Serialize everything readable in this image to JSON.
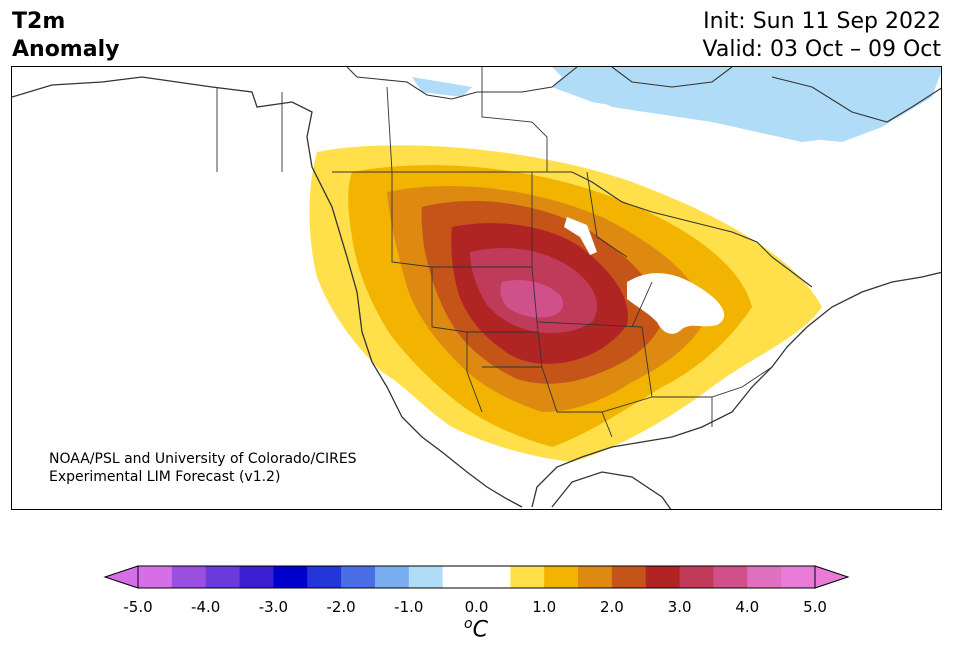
{
  "header": {
    "title_line1": "T2m",
    "title_line2": "Anomaly",
    "init": "Init: Sun 11 Sep 2022",
    "valid": "Valid: 03 Oct – 09 Oct"
  },
  "credit": {
    "line1": "NOAA/PSL and University of Colorado/CIRES",
    "line2": "Experimental LIM Forecast (v1.2)"
  },
  "colorbar": {
    "unit_main": "C",
    "unit_sup": "o",
    "ticks": [
      "-5.0",
      "-4.0",
      "-3.0",
      "-2.0",
      "-1.0",
      "0.0",
      "1.0",
      "2.0",
      "3.0",
      "4.0",
      "5.0"
    ],
    "colors": [
      "#d66ee8",
      "#9a4fe0",
      "#6a3adc",
      "#3a20d0",
      "#0000cc",
      "#2236d9",
      "#4a6ee6",
      "#78aef0",
      "#b0dcf8",
      "#ffffff",
      "#ffffff",
      "#ffe04a",
      "#f2b400",
      "#de8a10",
      "#c45418",
      "#b02424",
      "#c03a5a",
      "#d0508a",
      "#e070c0",
      "#e87ad8"
    ],
    "extend_min_color": "#d66ee8",
    "extend_max_color": "#e87ad8"
  },
  "map": {
    "region": "North America",
    "anomaly_levels_colors": {
      "weak_positive": "#ffe04a",
      "positive": "#f2b400",
      "moderate": "#de8a10",
      "strong": "#c45418",
      "very_strong": "#b02424",
      "extreme": "#c03a5a",
      "peak": "#d0508a",
      "cold_weak": "#b0dcf8"
    }
  }
}
